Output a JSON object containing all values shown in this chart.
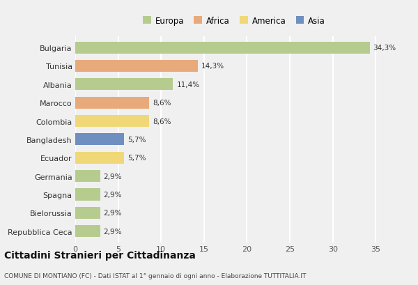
{
  "categories": [
    "Bulgaria",
    "Tunisia",
    "Albania",
    "Marocco",
    "Colombia",
    "Bangladesh",
    "Ecuador",
    "Germania",
    "Spagna",
    "Bielorussia",
    "Repubblica Ceca"
  ],
  "values": [
    34.3,
    14.3,
    11.4,
    8.6,
    8.6,
    5.7,
    5.7,
    2.9,
    2.9,
    2.9,
    2.9
  ],
  "labels": [
    "34,3%",
    "14,3%",
    "11,4%",
    "8,6%",
    "8,6%",
    "5,7%",
    "5,7%",
    "2,9%",
    "2,9%",
    "2,9%",
    "2,9%"
  ],
  "colors": [
    "#b5cc8e",
    "#e8aa7a",
    "#b5cc8e",
    "#e8aa7a",
    "#f0d878",
    "#6e8fc0",
    "#f0d878",
    "#b5cc8e",
    "#b5cc8e",
    "#b5cc8e",
    "#b5cc8e"
  ],
  "legend_labels": [
    "Europa",
    "Africa",
    "America",
    "Asia"
  ],
  "legend_colors": [
    "#b5cc8e",
    "#e8aa7a",
    "#f0d878",
    "#6e8fc0"
  ],
  "title": "Cittadini Stranieri per Cittadinanza",
  "subtitle": "COMUNE DI MONTIANO (FC) - Dati ISTAT al 1° gennaio di ogni anno - Elaborazione TUTTITALIA.IT",
  "xlim": [
    0,
    37
  ],
  "xticks": [
    0,
    5,
    10,
    15,
    20,
    25,
    30,
    35
  ],
  "background_color": "#f0f0f0",
  "grid_color": "#ffffff"
}
